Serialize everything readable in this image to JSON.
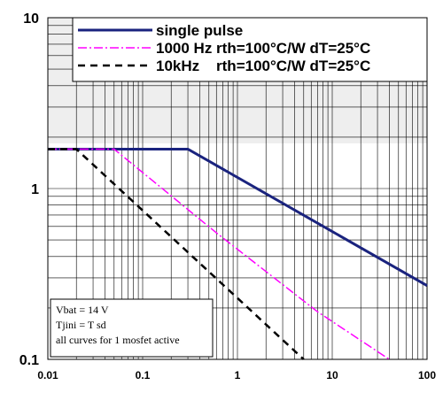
{
  "chart_data": {
    "type": "line",
    "x_scale": "log",
    "y_scale": "log",
    "xlim": [
      0.01,
      100
    ],
    "ylim": [
      0.1,
      10
    ],
    "x_ticks": [
      "0.01",
      "0.1",
      "1",
      "10",
      "100"
    ],
    "y_ticks": [
      "10",
      "1",
      "0.1"
    ],
    "grid": true,
    "legend_position": "top-right",
    "series": [
      {
        "name": "single pulse",
        "color": "#1a237e",
        "style": "solid",
        "points": [
          [
            0.01,
            1.7
          ],
          [
            0.3,
            1.7
          ],
          [
            100,
            0.27
          ]
        ]
      },
      {
        "name": "1000 Hz rth=100°C/W dT=25°C",
        "color": "#ff00ff",
        "style": "dash-dot",
        "points": [
          [
            0.01,
            1.7
          ],
          [
            0.05,
            1.7
          ],
          [
            0.6,
            0.55
          ],
          [
            7,
            0.19
          ],
          [
            40,
            0.1
          ]
        ]
      },
      {
        "name": "10kHz    rth=100°C/W dT=25°C",
        "color": "#000000",
        "style": "dashed",
        "points": [
          [
            0.01,
            1.7
          ],
          [
            0.02,
            1.7
          ],
          [
            5,
            0.1
          ]
        ]
      }
    ],
    "annotation": [
      "Vbat = 14 V",
      "Tjini = T sd",
      "all curves for 1 mosfet active"
    ]
  }
}
